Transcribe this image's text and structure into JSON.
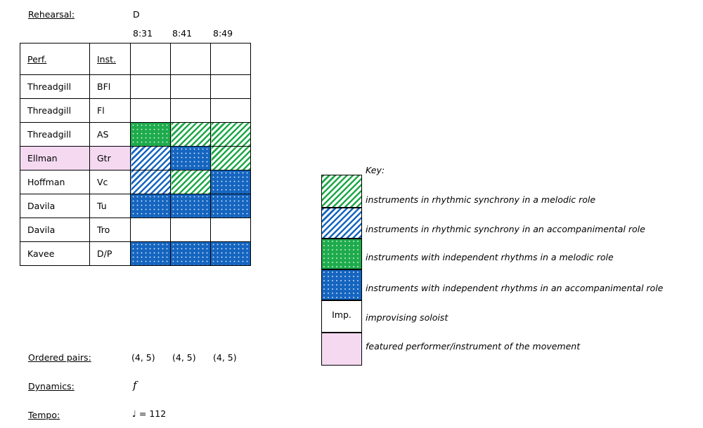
{
  "header": {
    "rehearsal_label": "Rehearsal:",
    "rehearsal_mark": "D",
    "times": [
      "8:31",
      "8:41",
      "8:49"
    ]
  },
  "table": {
    "columns": {
      "perf": "Perf.",
      "inst": "Inst."
    },
    "rows": [
      {
        "perf": "Threadgill",
        "inst": "BFl",
        "featured": false,
        "cells": [
          "empty",
          "empty",
          "empty"
        ]
      },
      {
        "perf": "Threadgill",
        "inst": "Fl",
        "featured": false,
        "cells": [
          "empty",
          "empty",
          "empty"
        ]
      },
      {
        "perf": "Threadgill",
        "inst": "AS",
        "featured": false,
        "cells": [
          "dots-green",
          "hatch-green",
          "hatch-green"
        ]
      },
      {
        "perf": "Ellman",
        "inst": "Gtr",
        "featured": true,
        "cells": [
          "hatch-blue",
          "dots-blue",
          "hatch-green"
        ]
      },
      {
        "perf": "Hoffman",
        "inst": "Vc",
        "featured": false,
        "cells": [
          "hatch-blue",
          "hatch-green",
          "dots-blue"
        ]
      },
      {
        "perf": "Davila",
        "inst": "Tu",
        "featured": false,
        "cells": [
          "dots-blue",
          "dots-blue",
          "dots-blue"
        ]
      },
      {
        "perf": "Davila",
        "inst": "Tro",
        "featured": false,
        "cells": [
          "empty",
          "empty",
          "empty"
        ]
      },
      {
        "perf": "Kavee",
        "inst": "D/P",
        "featured": false,
        "cells": [
          "dots-blue",
          "dots-blue",
          "dots-blue"
        ]
      }
    ]
  },
  "footer": {
    "ordered_pairs_label": "Ordered pairs:",
    "ordered_pairs": [
      "(4, 5)",
      "(4, 5)",
      "(4, 5)"
    ],
    "dynamics_label": "Dynamics:",
    "dynamics_value": "f",
    "tempo_label": "Tempo:",
    "tempo_note": "♩",
    "tempo_value": "= 112"
  },
  "key": {
    "title": "Key:",
    "items": [
      {
        "pattern": "hatch-green",
        "label": "instruments in rhythmic synchrony in a melodic role"
      },
      {
        "pattern": "hatch-blue",
        "label": "instruments in rhythmic synchrony in an accompanimental role"
      },
      {
        "pattern": "dots-green",
        "label": "instruments with independent rhythms in a melodic role"
      },
      {
        "pattern": "dots-blue",
        "label": "instruments with independent rhythms in an accompanimental role"
      },
      {
        "pattern": "imp",
        "label": "improvising soloist",
        "swatch_text": "Imp."
      },
      {
        "pattern": "featured",
        "label": "featured performer/instrument of the movement"
      }
    ]
  },
  "colors": {
    "melodic_green": "#1da848",
    "accompanimental_blue": "#1565c0",
    "featured_pink": "#f5d9f1"
  }
}
